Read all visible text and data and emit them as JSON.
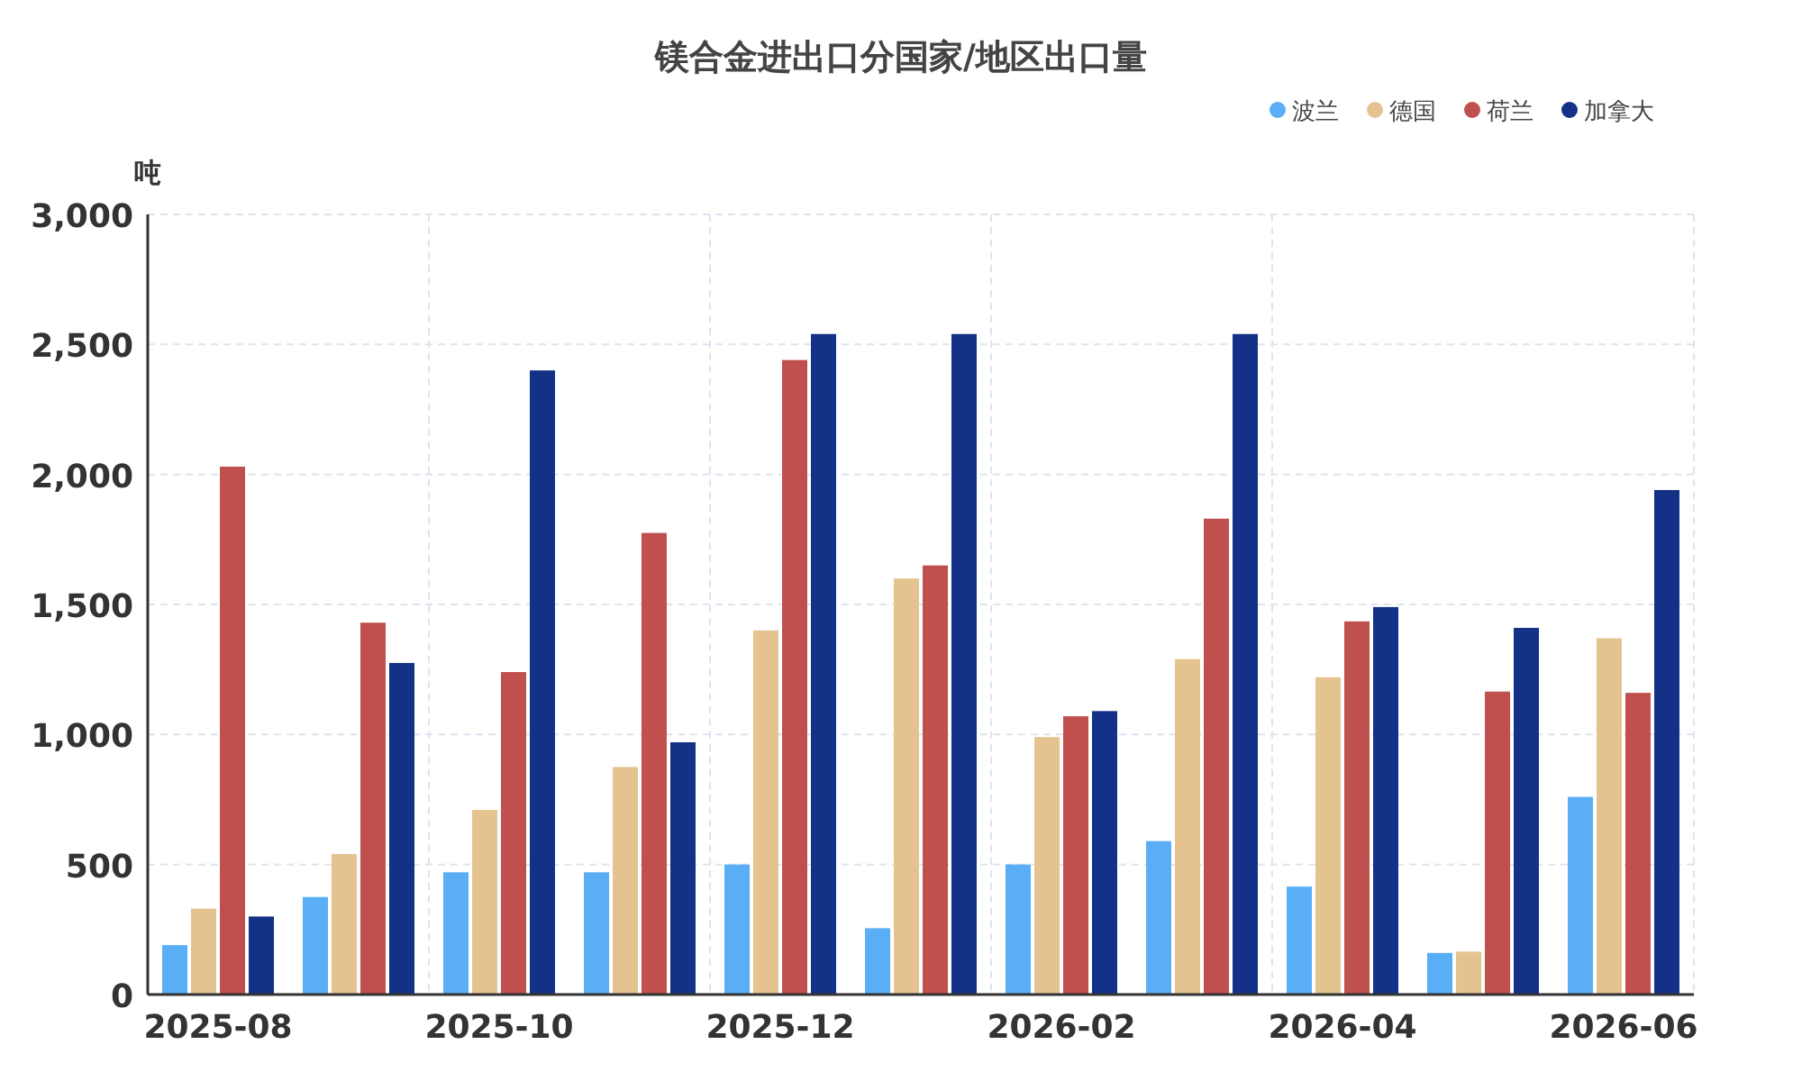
{
  "chart_data": {
    "type": "bar",
    "title": "镁合金进出口分国家/地区出口量",
    "ylabel": "吨",
    "categories": [
      "2025-08",
      null,
      "2025-10",
      null,
      "2025-12",
      null,
      "2026-02",
      null,
      "2026-04",
      null,
      "2026-06"
    ],
    "series": [
      {
        "name": "波兰",
        "color": "#5aaef5",
        "values": [
          190,
          375,
          470,
          470,
          500,
          255,
          500,
          590,
          415,
          160,
          760
        ]
      },
      {
        "name": "德国",
        "color": "#e5c391",
        "values": [
          330,
          540,
          710,
          875,
          1400,
          1600,
          990,
          1290,
          1220,
          165,
          1370
        ]
      },
      {
        "name": "荷兰",
        "color": "#c0504d",
        "values": [
          2030,
          1430,
          1240,
          1775,
          2440,
          1650,
          1070,
          1830,
          1435,
          1165,
          1160
        ]
      },
      {
        "name": "加拿大",
        "color": "#123187",
        "values": [
          300,
          1275,
          2400,
          970,
          2540,
          2540,
          1090,
          2540,
          1490,
          1410,
          1940
        ]
      }
    ],
    "ylim": [
      0,
      3000
    ],
    "yticks": [
      {
        "value": 0,
        "label": "0"
      },
      {
        "value": 500,
        "label": "500"
      },
      {
        "value": 1000,
        "label": "1,000"
      },
      {
        "value": 1500,
        "label": "1,500"
      },
      {
        "value": 2000,
        "label": "2,000"
      },
      {
        "value": 2500,
        "label": "2,500"
      },
      {
        "value": 3000,
        "label": "3,000"
      }
    ],
    "grid": true,
    "legend": "top right"
  }
}
